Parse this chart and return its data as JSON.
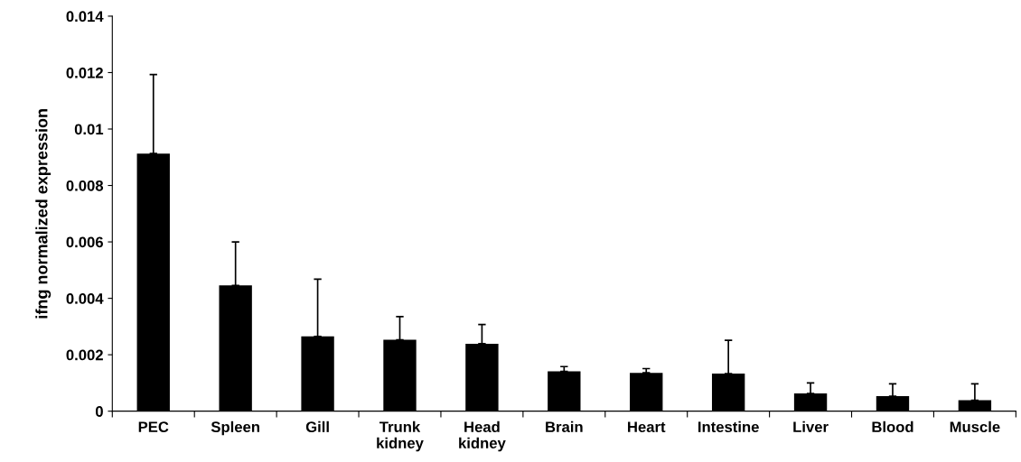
{
  "chart_data": {
    "type": "bar",
    "ylabel": "ifng normalized expression",
    "categories": [
      "PEC",
      "Spleen",
      "Gill",
      "Trunk\nkidney",
      "Head\nkidney",
      "Brain",
      "Heart",
      "Intestine",
      "Liver",
      "Blood",
      "Muscle"
    ],
    "values": [
      0.00913,
      0.00446,
      0.00265,
      0.00253,
      0.00239,
      0.00141,
      0.00136,
      0.00133,
      0.00063,
      0.00053,
      0.00039
    ],
    "errors": [
      [
        0.00913,
        0.01193
      ],
      [
        0.00446,
        0.006
      ],
      [
        0.00265,
        0.00468
      ],
      [
        0.00253,
        0.00335
      ],
      [
        0.00239,
        0.00307
      ],
      [
        0.00141,
        0.00158
      ],
      [
        0.00136,
        0.00151
      ],
      [
        0.00133,
        0.00251
      ],
      [
        0.00063,
        0.001
      ],
      [
        0.00053,
        0.00097
      ],
      [
        0.00039,
        0.00097
      ]
    ],
    "color": "#000000",
    "ylim": [
      0,
      0.014
    ],
    "yticks": [
      0,
      0.002,
      0.004,
      0.006,
      0.008,
      0.01,
      0.012,
      0.014
    ],
    "grid": false
  }
}
